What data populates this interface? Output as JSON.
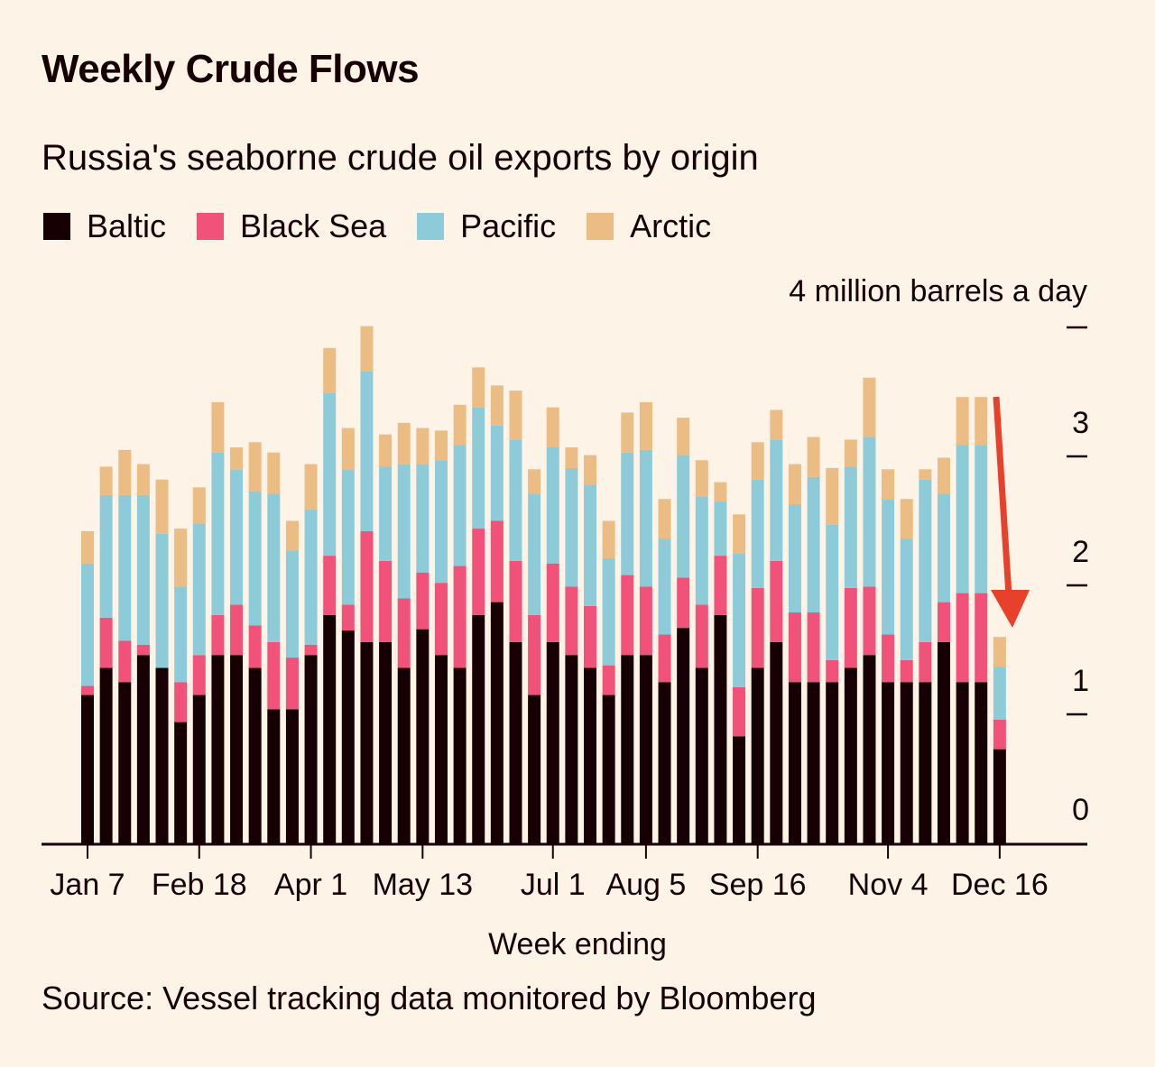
{
  "title": "Weekly Crude Flows",
  "subtitle": "Russia's seaborne crude oil exports by origin",
  "source": "Source: Vessel tracking data monitored by Bloomberg",
  "colors": {
    "background": "#fdf3e7",
    "text": "#170003",
    "Baltic": "#170003",
    "Black Sea": "#f0527a",
    "Pacific": "#8ecbd9",
    "Arctic": "#ebbd84",
    "annotation_arrow": "#e8412b"
  },
  "legend": [
    {
      "label": "Baltic",
      "color": "#170003"
    },
    {
      "label": "Black Sea",
      "color": "#f0527a"
    },
    {
      "label": "Pacific",
      "color": "#8ecbd9"
    },
    {
      "label": "Arctic",
      "color": "#ebbd84"
    }
  ],
  "chart_data": {
    "type": "bar",
    "stacked": true,
    "title": "Weekly Crude Flows",
    "subtitle": "Russia's seaborne crude oil exports by origin",
    "xlabel": "Week ending",
    "ylabel": "4 million barrels a day",
    "yunit_label": "4 million barrels a day",
    "ylim": [
      0,
      4
    ],
    "yticks": [
      0,
      1,
      2,
      3,
      4
    ],
    "ytick_labels": [
      "0",
      "1",
      "2",
      "3",
      ""
    ],
    "y_axis_position": "right",
    "grid": false,
    "legend_position": "top-left",
    "week_count": 50,
    "x_tick_labels": [
      {
        "index": 0,
        "label": "Jan 7"
      },
      {
        "index": 6,
        "label": "Feb 18"
      },
      {
        "index": 12,
        "label": "Apr 1"
      },
      {
        "index": 18,
        "label": "May 13"
      },
      {
        "index": 25,
        "label": "Jul 1"
      },
      {
        "index": 30,
        "label": "Aug 5"
      },
      {
        "index": 36,
        "label": "Sep 16"
      },
      {
        "index": 43,
        "label": "Nov 4"
      },
      {
        "index": 49,
        "label": "Dec 16"
      }
    ],
    "series": [
      {
        "name": "Baltic",
        "values": [
          1.15,
          1.36,
          1.25,
          1.46,
          1.36,
          0.94,
          1.15,
          1.46,
          1.46,
          1.36,
          1.04,
          1.04,
          1.46,
          1.77,
          1.65,
          1.56,
          1.56,
          1.36,
          1.66,
          1.46,
          1.36,
          1.77,
          1.87,
          1.56,
          1.15,
          1.56,
          1.46,
          1.36,
          1.15,
          1.46,
          1.46,
          1.25,
          1.67,
          1.36,
          1.77,
          0.83,
          1.36,
          1.56,
          1.25,
          1.25,
          1.25,
          1.36,
          1.46,
          1.25,
          1.25,
          1.25,
          1.56,
          1.25,
          1.25,
          0.73
        ]
      },
      {
        "name": "Black Sea",
        "values": [
          0.07,
          0.39,
          0.32,
          0.08,
          0.0,
          0.31,
          0.31,
          0.31,
          0.39,
          0.33,
          0.52,
          0.4,
          0.08,
          0.46,
          0.2,
          0.86,
          0.63,
          0.54,
          0.44,
          0.56,
          0.79,
          0.67,
          0.63,
          0.63,
          0.62,
          0.61,
          0.53,
          0.48,
          0.23,
          0.62,
          0.53,
          0.37,
          0.39,
          0.49,
          0.46,
          0.38,
          0.62,
          0.63,
          0.54,
          0.54,
          0.17,
          0.62,
          0.53,
          0.37,
          0.17,
          0.31,
          0.31,
          0.69,
          0.69,
          0.23
        ]
      },
      {
        "name": "Pacific",
        "values": [
          0.95,
          0.95,
          1.13,
          1.16,
          1.04,
          0.74,
          1.02,
          1.26,
          1.05,
          1.04,
          1.15,
          0.83,
          1.05,
          1.26,
          1.05,
          1.24,
          0.73,
          1.04,
          0.84,
          0.95,
          0.94,
          0.94,
          0.74,
          0.94,
          0.94,
          0.9,
          0.92,
          0.94,
          0.83,
          0.95,
          1.06,
          0.74,
          0.95,
          0.84,
          0.42,
          1.04,
          0.84,
          0.94,
          0.84,
          1.05,
          1.05,
          0.94,
          1.16,
          1.05,
          0.94,
          1.26,
          0.84,
          1.15,
          1.15,
          0.41
        ]
      },
      {
        "name": "Arctic",
        "values": [
          0.25,
          0.22,
          0.35,
          0.24,
          0.42,
          0.45,
          0.28,
          0.39,
          0.17,
          0.38,
          0.32,
          0.23,
          0.35,
          0.35,
          0.32,
          0.35,
          0.25,
          0.32,
          0.28,
          0.23,
          0.31,
          0.31,
          0.31,
          0.38,
          0.19,
          0.31,
          0.16,
          0.23,
          0.29,
          0.31,
          0.37,
          0.31,
          0.29,
          0.28,
          0.15,
          0.3,
          0.29,
          0.23,
          0.31,
          0.31,
          0.44,
          0.21,
          0.46,
          0.23,
          0.31,
          0.08,
          0.28,
          0.37,
          0.37,
          0.23
        ]
      }
    ],
    "annotation": {
      "type": "arrow",
      "description": "red downward arrow pointing to final week (Dec 16) drop",
      "color": "#e8412b"
    }
  }
}
